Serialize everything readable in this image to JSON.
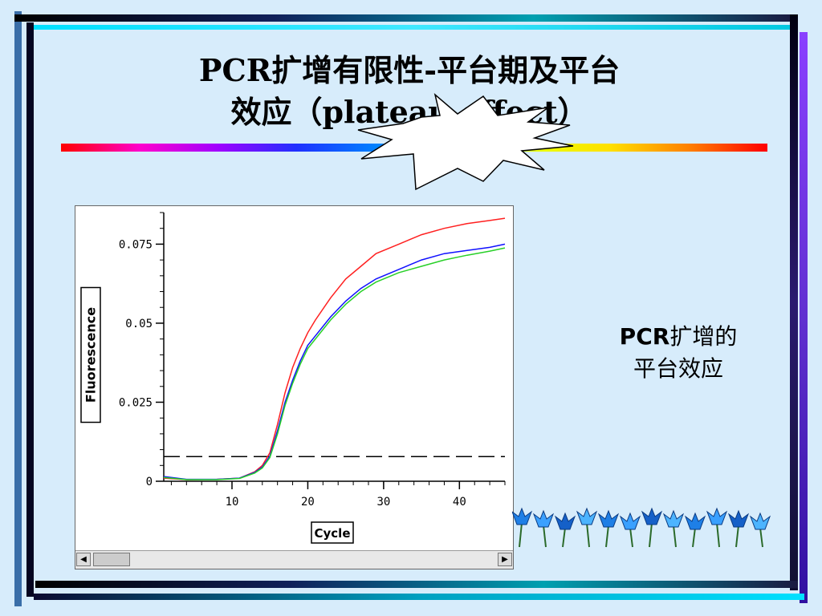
{
  "slide": {
    "title_line1": "PCR扩增有限性-平台期及平台",
    "title_line2": "效应（plateau effect）",
    "caption_pcr": "PCR",
    "caption_rest1": "扩增的",
    "caption_line2": "平台效应"
  },
  "chart_data": {
    "type": "line",
    "title": "",
    "xlabel": "Cycle",
    "ylabel": "Fluorescence",
    "xlim": [
      1,
      46
    ],
    "ylim": [
      0,
      0.085
    ],
    "x_ticks": [
      "10",
      "20",
      "30",
      "40"
    ],
    "y_ticks": [
      "0",
      "0.025",
      "0.05",
      "0.075"
    ],
    "threshold": 0.0078,
    "series": [
      {
        "color": "#ff2020",
        "x": [
          1,
          4,
          8,
          11,
          13,
          14,
          15,
          16,
          17,
          18,
          19,
          20,
          21,
          23,
          25,
          27,
          29,
          32,
          35,
          38,
          41,
          44,
          46
        ],
        "y": [
          0.001,
          0.0005,
          0.0006,
          0.001,
          0.003,
          0.005,
          0.009,
          0.018,
          0.028,
          0.036,
          0.042,
          0.047,
          0.051,
          0.058,
          0.064,
          0.068,
          0.072,
          0.075,
          0.078,
          0.08,
          0.0815,
          0.0825,
          0.0832
        ]
      },
      {
        "color": "#1010ff",
        "x": [
          1,
          4,
          8,
          11,
          13,
          14,
          15,
          16,
          17,
          18,
          19,
          20,
          21,
          23,
          25,
          27,
          29,
          32,
          35,
          38,
          41,
          44,
          46
        ],
        "y": [
          0.0015,
          0.0006,
          0.0006,
          0.001,
          0.0028,
          0.0045,
          0.008,
          0.016,
          0.025,
          0.032,
          0.038,
          0.043,
          0.046,
          0.052,
          0.057,
          0.061,
          0.064,
          0.067,
          0.07,
          0.072,
          0.073,
          0.074,
          0.075
        ]
      },
      {
        "color": "#28d028",
        "x": [
          1,
          4,
          8,
          11,
          13,
          14,
          15,
          16,
          17,
          18,
          19,
          20,
          21,
          23,
          25,
          27,
          29,
          32,
          35,
          38,
          41,
          44,
          46
        ],
        "y": [
          0.0012,
          0.0005,
          0.0005,
          0.0009,
          0.0026,
          0.0042,
          0.0075,
          0.015,
          0.024,
          0.031,
          0.037,
          0.042,
          0.045,
          0.051,
          0.056,
          0.06,
          0.063,
          0.066,
          0.068,
          0.07,
          0.0715,
          0.0728,
          0.0738
        ]
      }
    ],
    "grid": false,
    "legend": "none"
  },
  "ui": {
    "scroll_left_icon": "◀",
    "scroll_right_icon": "▶"
  }
}
